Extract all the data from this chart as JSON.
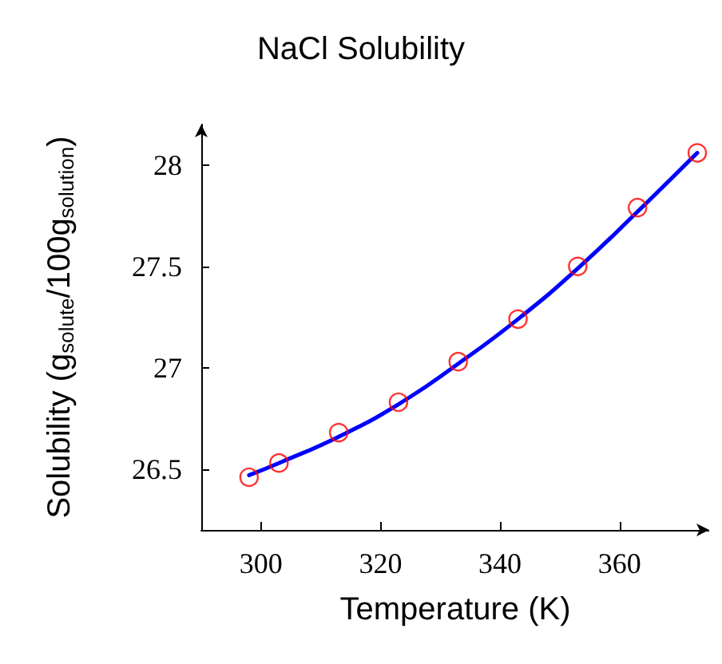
{
  "chart_data": {
    "type": "scatter",
    "title": "NaCl Solubility",
    "xlabel": "Temperature (K)",
    "ylabel": "Solubility (g$_{solute}$/100g$_{solution}$)",
    "xlim": [
      290,
      375
    ],
    "xticks": [
      300,
      320,
      340,
      360
    ],
    "ylim": [
      26.2,
      28.2
    ],
    "yticks": [
      26.5,
      27,
      27.5,
      28
    ],
    "grid": false,
    "series": [
      {
        "color": "#ff0000",
        "marker": "circle",
        "x": [
          298,
          303,
          313,
          323,
          333,
          343,
          353,
          363,
          373
        ],
        "values": [
          26.46,
          26.53,
          26.68,
          26.83,
          27.03,
          27.24,
          27.5,
          27.79,
          28.06
        ]
      },
      {
        "type": "line",
        "color": "#0000ff",
        "marker": "none",
        "x": [
          298,
          303,
          313,
          323,
          333,
          343,
          353,
          363,
          373
        ],
        "values": [
          26.47,
          26.53,
          26.66,
          26.82,
          27.02,
          27.24,
          27.49,
          27.77,
          28.06
        ]
      }
    ]
  }
}
